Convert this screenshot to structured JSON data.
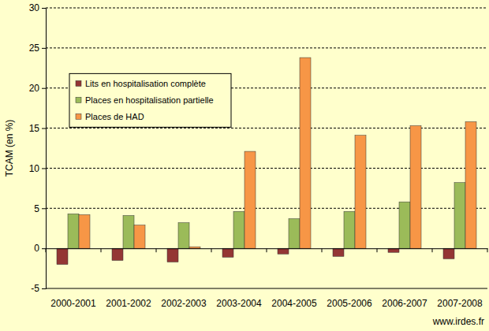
{
  "chart_data": {
    "type": "bar",
    "y_label": "TCAM (en %)",
    "categories": [
      "2000-2001",
      "2001-2002",
      "2002-2003",
      "2003-2004",
      "2004-2005",
      "2005-2006",
      "2006-2007",
      "2007-2008"
    ],
    "series": [
      {
        "name": "Lits en hospitalisation complète",
        "color": "#943634",
        "values": [
          -2.0,
          -1.5,
          -1.7,
          -1.1,
          -0.7,
          -1.0,
          -0.5,
          -1.3
        ]
      },
      {
        "name": "Places en hospitalisation partielle",
        "color": "#9BBB59",
        "values": [
          4.3,
          4.1,
          3.2,
          4.6,
          3.7,
          4.6,
          5.8,
          8.2
        ]
      },
      {
        "name": "Places de HAD",
        "color": "#F79646",
        "values": [
          4.2,
          2.9,
          0.2,
          12.1,
          23.8,
          14.1,
          15.3,
          15.8
        ]
      }
    ],
    "ylim": [
      -5,
      30
    ],
    "yticks": [
      -5,
      0,
      5,
      10,
      15,
      20,
      25,
      30
    ],
    "grid": true,
    "legend": "upper left",
    "annotations": [
      "www.irdes.fr"
    ]
  }
}
